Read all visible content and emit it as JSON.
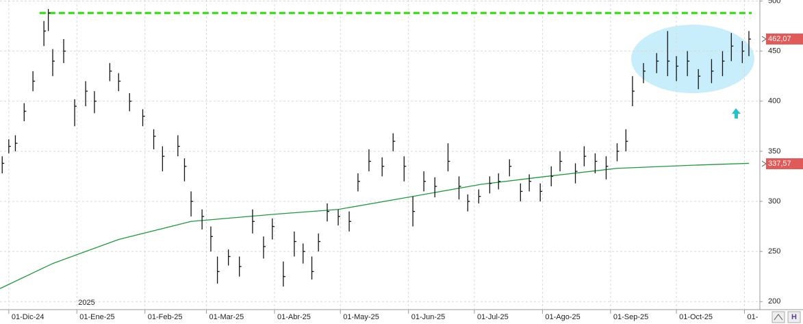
{
  "chart_data": {
    "type": "ohlc",
    "x": [
      -3,
      0,
      3,
      7,
      11,
      16,
      18,
      20,
      25,
      30,
      35,
      39,
      46,
      50,
      55,
      61,
      66,
      70,
      77,
      80,
      83,
      88,
      92,
      95,
      100,
      105,
      111,
      116,
      120,
      125,
      130,
      134,
      138,
      141,
      145,
      150,
      155,
      159,
      164,
      170,
      175,
      180,
      184,
      189,
      194,
      200,
      205,
      209,
      214,
      219,
      223,
      228,
      233,
      237,
      242,
      247,
      251,
      258,
      262,
      267,
      272,
      277,
      281,
      284,
      289,
      295,
      300,
      304,
      309,
      314,
      320,
      325,
      329,
      334,
      337
    ],
    "high": [
      345,
      362,
      366,
      398,
      430,
      480,
      492,
      452,
      462,
      402,
      420,
      410,
      438,
      428,
      408,
      392,
      372,
      355,
      366,
      343,
      310,
      292,
      275,
      245,
      252,
      245,
      292,
      265,
      283,
      240,
      270,
      258,
      245,
      268,
      298,
      292,
      290,
      328,
      352,
      344,
      368,
      345,
      305,
      330,
      324,
      358,
      325,
      307,
      312,
      325,
      328,
      342,
      318,
      327,
      318,
      335,
      350,
      338,
      355,
      348,
      345,
      358,
      372,
      425,
      438,
      448,
      470,
      445,
      450,
      432,
      442,
      450,
      468,
      460,
      470
    ],
    "low": [
      328,
      348,
      350,
      380,
      410,
      455,
      470,
      425,
      438,
      375,
      395,
      388,
      420,
      410,
      390,
      375,
      352,
      330,
      345,
      320,
      285,
      272,
      250,
      218,
      236,
      225,
      268,
      243,
      262,
      215,
      245,
      238,
      222,
      250,
      280,
      276,
      270,
      310,
      330,
      325,
      350,
      320,
      275,
      310,
      304,
      330,
      302,
      290,
      298,
      308,
      312,
      325,
      300,
      310,
      300,
      315,
      330,
      318,
      335,
      328,
      322,
      340,
      350,
      395,
      418,
      428,
      425,
      420,
      425,
      412,
      418,
      425,
      440,
      438,
      445
    ],
    "close": [
      338,
      355,
      358,
      390,
      420,
      470,
      488,
      440,
      450,
      395,
      410,
      400,
      430,
      420,
      400,
      385,
      365,
      345,
      355,
      335,
      300,
      285,
      265,
      230,
      245,
      235,
      280,
      255,
      275,
      225,
      260,
      250,
      230,
      260,
      290,
      285,
      280,
      320,
      340,
      335,
      360,
      335,
      290,
      320,
      315,
      340,
      315,
      300,
      305,
      318,
      320,
      335,
      310,
      320,
      310,
      325,
      340,
      330,
      345,
      340,
      335,
      350,
      360,
      410,
      430,
      440,
      440,
      435,
      440,
      425,
      430,
      440,
      455,
      450,
      462
    ],
    "color": "#111111",
    "moving_average": {
      "color": "#1e9a3c",
      "x": [
        -4,
        20,
        50,
        83,
        120,
        150,
        184,
        215,
        245,
        277,
        310,
        337
      ],
      "values": [
        213,
        238,
        262,
        280,
        287,
        292,
        305,
        317,
        325,
        333,
        336,
        338
      ]
    },
    "resistance": {
      "value": 488,
      "color": "#22dd00"
    },
    "price_labels": [
      {
        "value": 462.07,
        "label": "462,07"
      },
      {
        "value": 337.57,
        "label": "337,57"
      }
    ],
    "year_label": "2025",
    "xlim": [
      -4,
      342
    ],
    "xticks": [
      {
        "value": 0,
        "label": "01-Dic-24"
      },
      {
        "value": 31,
        "label": "01-Ene-25"
      },
      {
        "value": 62,
        "label": "01-Feb-25"
      },
      {
        "value": 90,
        "label": "01-Mar-25"
      },
      {
        "value": 121,
        "label": "01-Abr-25"
      },
      {
        "value": 151,
        "label": "01-May-25"
      },
      {
        "value": 182,
        "label": "01-Jun-25"
      },
      {
        "value": 212,
        "label": "01-Jul-25"
      },
      {
        "value": 243,
        "label": "01-Ago-25"
      },
      {
        "value": 274,
        "label": "01-Sep-25"
      },
      {
        "value": 304,
        "label": "01-Oct-25"
      },
      {
        "value": 335,
        "label": "01-"
      }
    ],
    "ylim": [
      192,
      501
    ],
    "yticks": [
      200,
      250,
      300,
      350,
      400,
      450,
      500
    ],
    "grid": true
  }
}
